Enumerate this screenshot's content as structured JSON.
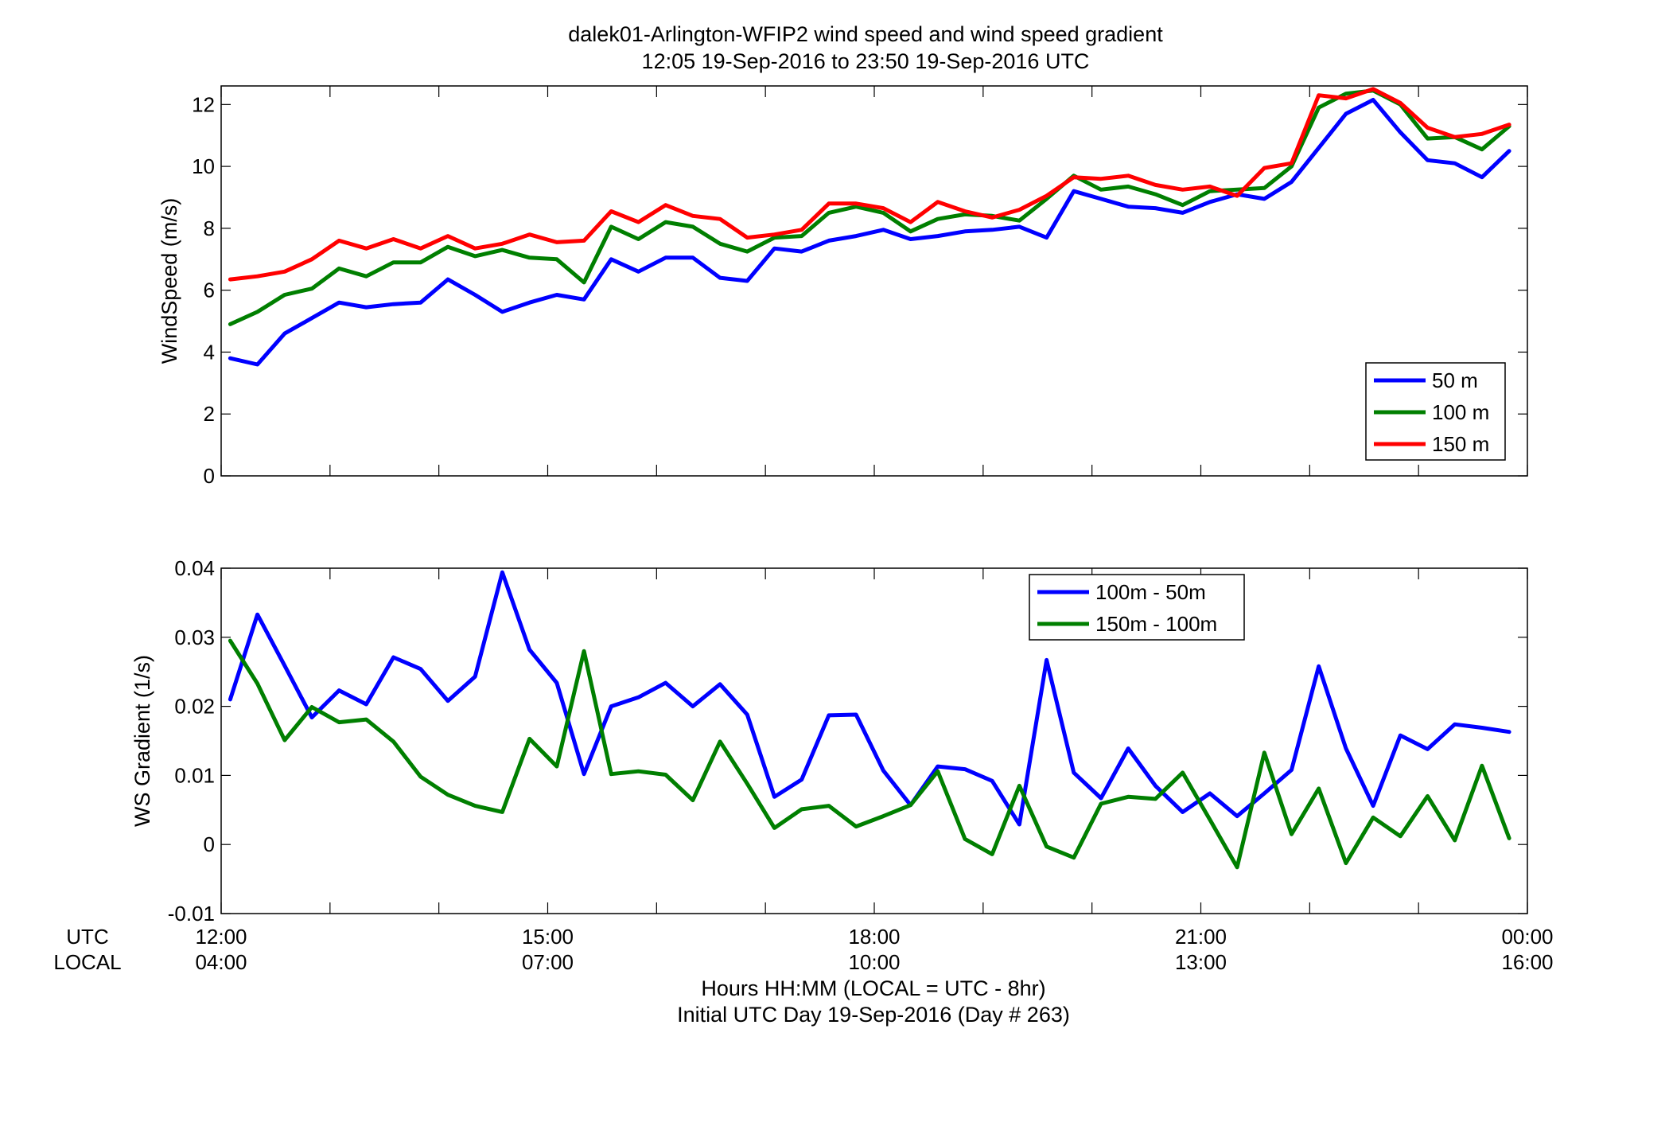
{
  "figure": {
    "title_line1": "dalek01-Arlington-WFIP2  wind speed and wind speed gradient",
    "title_line2": "12:05 19-Sep-2016 to 23:50 19-Sep-2016  UTC",
    "xlabel_line1": "Hours HH:MM  (LOCAL = UTC - 8hr)",
    "xlabel_line2": "Initial UTC Day 19-Sep-2016 (Day # 263)",
    "utc_row_label": "UTC",
    "local_row_label": "LOCAL",
    "x_ticks_utc": [
      "12:00",
      "15:00",
      "18:00",
      "21:00",
      "00:00"
    ],
    "x_ticks_local": [
      "04:00",
      "07:00",
      "10:00",
      "13:00",
      "16:00"
    ],
    "colors": {
      "blue": "#0000ff",
      "green": "#007f00",
      "red": "#ff0000"
    }
  },
  "chart_data": [
    {
      "type": "line",
      "ylabel": "WindSpeed (m/s)",
      "xlim": [
        12,
        24
      ],
      "ylim": [
        0,
        12.6
      ],
      "yticks": [
        0,
        2,
        4,
        6,
        8,
        10,
        12
      ],
      "grid": false,
      "legend_position": "bottom-right",
      "x_unit": "hours UTC",
      "x": [
        12.083,
        12.333,
        12.583,
        12.833,
        13.083,
        13.333,
        13.583,
        13.833,
        14.083,
        14.333,
        14.583,
        14.833,
        15.083,
        15.333,
        15.583,
        15.833,
        16.083,
        16.333,
        16.583,
        16.833,
        17.083,
        17.333,
        17.583,
        17.833,
        18.083,
        18.333,
        18.583,
        18.833,
        19.083,
        19.333,
        19.583,
        19.833,
        20.083,
        20.333,
        20.583,
        20.833,
        21.083,
        21.333,
        21.583,
        21.833,
        22.083,
        22.333,
        22.583,
        22.833,
        23.083,
        23.333,
        23.583,
        23.833
      ],
      "series": [
        {
          "name": "50 m",
          "color": "#0000ff",
          "values": [
            3.8,
            3.6,
            4.6,
            5.1,
            5.6,
            5.45,
            5.55,
            5.6,
            6.35,
            5.85,
            5.3,
            5.6,
            5.85,
            5.7,
            7.0,
            6.6,
            7.05,
            7.05,
            6.4,
            6.3,
            7.35,
            7.25,
            7.6,
            7.75,
            7.95,
            7.65,
            7.75,
            7.9,
            7.95,
            8.05,
            7.7,
            9.2,
            8.95,
            8.7,
            8.65,
            8.5,
            8.85,
            9.1,
            8.95,
            9.5,
            10.6,
            11.7,
            12.15,
            11.1,
            10.2,
            10.1,
            9.65,
            10.5
          ]
        },
        {
          "name": "100 m",
          "color": "#007f00",
          "values": [
            4.9,
            5.3,
            5.85,
            6.05,
            6.7,
            6.45,
            6.9,
            6.9,
            7.4,
            7.1,
            7.3,
            7.05,
            7.0,
            6.25,
            8.05,
            7.65,
            8.2,
            8.05,
            7.5,
            7.25,
            7.7,
            7.75,
            8.5,
            8.7,
            8.5,
            7.9,
            8.3,
            8.45,
            8.4,
            8.25,
            8.95,
            9.7,
            9.25,
            9.35,
            9.1,
            8.75,
            9.2,
            9.25,
            9.3,
            10.0,
            11.9,
            12.35,
            12.45,
            12.0,
            10.9,
            10.95,
            10.55,
            11.3
          ]
        },
        {
          "name": "150 m",
          "color": "#ff0000",
          "values": [
            6.35,
            6.45,
            6.6,
            7.0,
            7.6,
            7.35,
            7.65,
            7.35,
            7.75,
            7.35,
            7.5,
            7.8,
            7.55,
            7.6,
            8.55,
            8.2,
            8.75,
            8.4,
            8.3,
            7.7,
            7.8,
            7.95,
            8.8,
            8.8,
            8.65,
            8.2,
            8.85,
            8.55,
            8.35,
            8.6,
            9.05,
            9.65,
            9.6,
            9.7,
            9.4,
            9.25,
            9.35,
            9.05,
            9.95,
            10.1,
            12.3,
            12.2,
            12.5,
            12.05,
            11.25,
            10.95,
            11.05,
            11.35
          ]
        }
      ]
    },
    {
      "type": "line",
      "ylabel": "WS Gradient (1/s)",
      "xlim": [
        12,
        24
      ],
      "ylim": [
        -0.01,
        0.04
      ],
      "yticks": [
        -0.01,
        0,
        0.01,
        0.02,
        0.03,
        0.04
      ],
      "grid": false,
      "legend_position": "top-center",
      "x_unit": "hours UTC",
      "x": [
        12.083,
        12.333,
        12.583,
        12.833,
        13.083,
        13.333,
        13.583,
        13.833,
        14.083,
        14.333,
        14.583,
        14.833,
        15.083,
        15.333,
        15.583,
        15.833,
        16.083,
        16.333,
        16.583,
        16.833,
        17.083,
        17.333,
        17.583,
        17.833,
        18.083,
        18.333,
        18.583,
        18.833,
        19.083,
        19.333,
        19.583,
        19.833,
        20.083,
        20.333,
        20.583,
        20.833,
        21.083,
        21.333,
        21.583,
        21.833,
        22.083,
        22.333,
        22.583,
        22.833,
        23.083,
        23.333,
        23.583,
        23.833
      ],
      "series": [
        {
          "name": "100m - 50m",
          "color": "#0000ff",
          "values": [
            0.021,
            0.0333,
            0.0259,
            0.0184,
            0.0223,
            0.0203,
            0.0271,
            0.0254,
            0.0208,
            0.0243,
            0.0394,
            0.0282,
            0.0234,
            0.0102,
            0.02,
            0.0213,
            0.0234,
            0.02,
            0.0232,
            0.0188,
            0.0069,
            0.0094,
            0.0187,
            0.0188,
            0.0107,
            0.0057,
            0.0113,
            0.0109,
            0.0092,
            0.0029,
            0.0267,
            0.0104,
            0.0067,
            0.0139,
            0.0085,
            0.0047,
            0.0074,
            0.0041,
            0.0074,
            0.0108,
            0.0258,
            0.0139,
            0.0056,
            0.0158,
            0.0138,
            0.0174,
            0.0169,
            0.0163
          ]
        },
        {
          "name": "150m - 100m",
          "color": "#007f00",
          "values": [
            0.0295,
            0.0233,
            0.0151,
            0.0199,
            0.0177,
            0.0181,
            0.0149,
            0.0098,
            0.0072,
            0.0056,
            0.0047,
            0.0153,
            0.0113,
            0.028,
            0.0102,
            0.0106,
            0.0101,
            0.0064,
            0.0149,
            0.0088,
            0.0024,
            0.0051,
            0.0056,
            0.0026,
            0.0041,
            0.0057,
            0.0106,
            0.0008,
            -0.0014,
            0.0085,
            -0.0003,
            -0.0019,
            0.0059,
            0.0069,
            0.0066,
            0.0104,
            0.0036,
            -0.0033,
            0.0133,
            0.0015,
            0.0081,
            -0.0027,
            0.0039,
            0.0012,
            0.007,
            0.0006,
            0.0114,
            0.0009
          ]
        }
      ]
    }
  ]
}
